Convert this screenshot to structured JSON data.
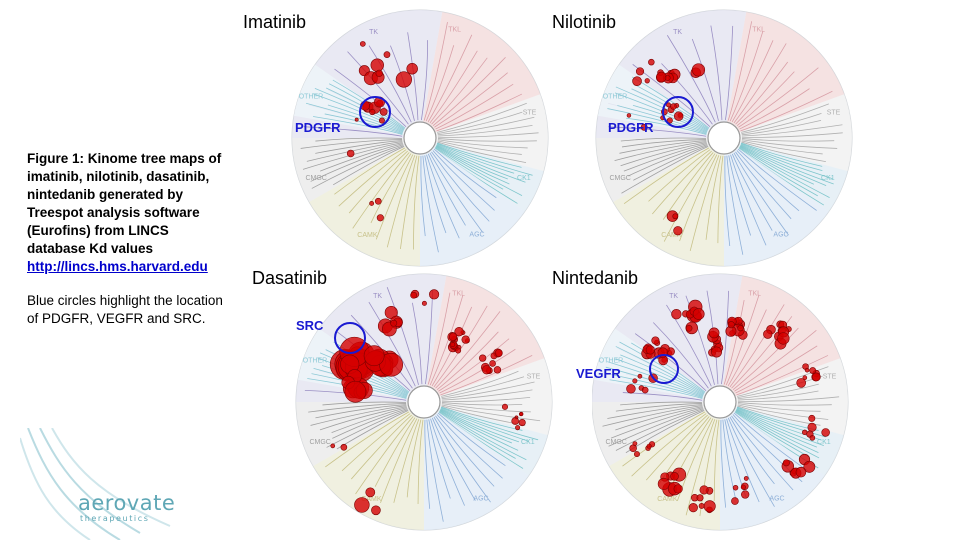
{
  "caption": {
    "bold_text": "Figure 1: Kinome tree maps of imatinib, nilotinib, dasatinib, nintedanib generated by Treespot analysis software (Eurofins) from LINCS database Kd values",
    "link": "http://lincs.hms.harvard.edu",
    "note": "Blue circles highlight the location of PDGFR, VEGFR and SRC."
  },
  "group_labels": [
    "TKL",
    "TK",
    "STE",
    "CK1",
    "AGC",
    "CAMK",
    "CMGC",
    "OTHER"
  ],
  "panels": [
    {
      "title": "Imatinib",
      "highlight": "PDGFR"
    },
    {
      "title": "Nilotinib",
      "highlight": "PDGFR"
    },
    {
      "title": "Dasatinib",
      "highlight": "SRC"
    },
    {
      "title": "Nintedanib",
      "highlight": "VEGFR"
    }
  ],
  "logo": {
    "name": "aerovate",
    "sub": "therapeutics"
  },
  "colors": {
    "highlight": "#1a1ad1",
    "hit": "#cc0000",
    "logo": "#5fa7b5"
  }
}
